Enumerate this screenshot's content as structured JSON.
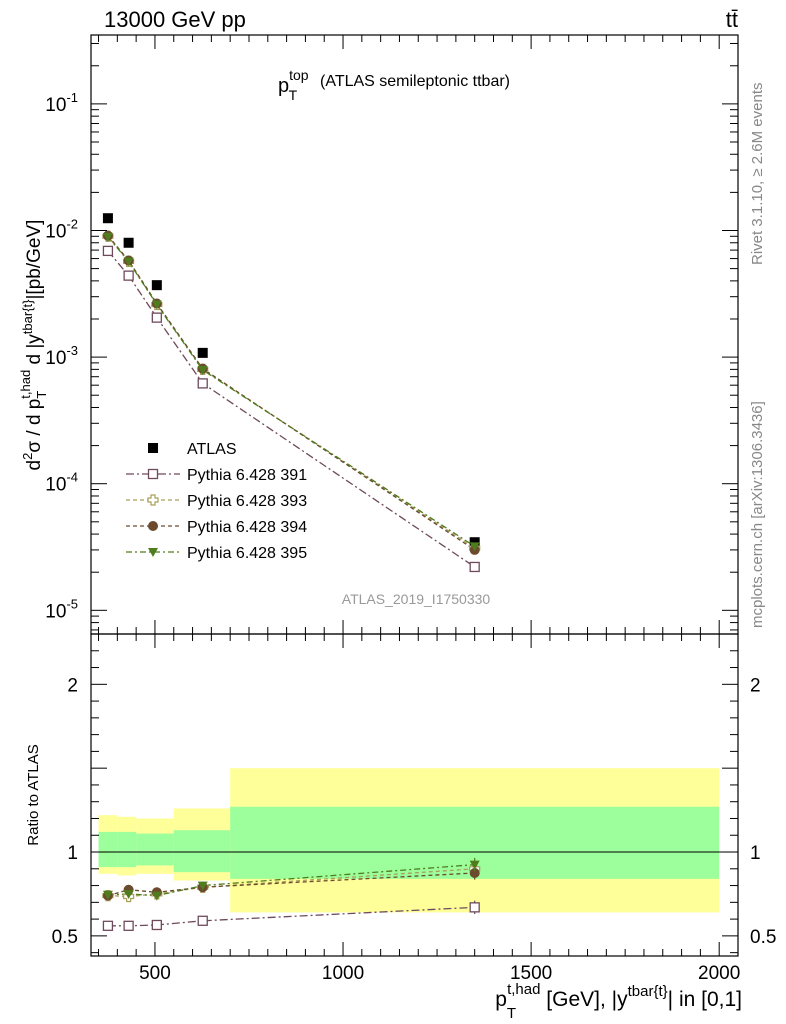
{
  "header": {
    "left": "13000 GeV pp",
    "right": "tt̄"
  },
  "side_labels": {
    "rivet": "Rivet 3.1.10, ≥ 2.6M events",
    "mcplots": "mcplots.cern.ch [arXiv:1306.3436]"
  },
  "analysis_id": "ATLAS_2019_I1750330",
  "colors": {
    "data": "#000000",
    "p391": "#6e4a5c",
    "p393": "#a8a05a",
    "p394": "#6b4a2e",
    "p395": "#4f7d1e",
    "band_inner": "#9cff9c",
    "band_outer": "#ffff99"
  },
  "chart_data": [
    {
      "type": "scatter",
      "panel": "main",
      "title_main": "p",
      "title_sup": "top",
      "title_sub": "T",
      "title_rest": "(ATLAS semileptonic ttbar)",
      "ylabel": "d²σ / d p_T^{t,had} d |y^{tbar{t}}|[pb/GeV]",
      "yscale": "log",
      "ylim": [
        6.5e-06,
        0.35
      ],
      "xlim": [
        330,
        2050
      ],
      "y_ticks": [
        "10^-5",
        "10^-4",
        "10^-3",
        "10^-2",
        "10^-1"
      ],
      "legend_position": "lower-left",
      "x": [
        375,
        430,
        505,
        627,
        1350
      ],
      "series": [
        {
          "name": "ATLAS",
          "marker": "filled-square",
          "values": [
            0.0125,
            0.008,
            0.0037,
            0.00108,
            3.45e-05
          ]
        },
        {
          "name": "Pythia 6.428 391",
          "marker": "open-square",
          "values": [
            0.0069,
            0.0044,
            0.00205,
            0.00062,
            2.2e-05
          ]
        },
        {
          "name": "Pythia 6.428 393",
          "marker": "open-cross",
          "values": [
            0.009,
            0.0057,
            0.0026,
            0.0008,
            3.1e-05
          ]
        },
        {
          "name": "Pythia 6.428 394",
          "marker": "filled-circle",
          "values": [
            0.0091,
            0.0058,
            0.00265,
            0.00081,
            3e-05
          ]
        },
        {
          "name": "Pythia 6.428 395",
          "marker": "filled-triangle-down",
          "values": [
            0.0089,
            0.0057,
            0.0026,
            0.00079,
            3.2e-05
          ]
        }
      ]
    },
    {
      "type": "scatter",
      "panel": "ratio",
      "ylabel": "Ratio to ATLAS",
      "xlabel": "p_T^{t,had} [GeV], |y^{tbar{t}}| in [0,1]",
      "ylim": [
        0.38,
        2.3
      ],
      "xlim": [
        330,
        2050
      ],
      "x_ticks": [
        500,
        1000,
        1500,
        2000
      ],
      "y_ticks": [
        0.5,
        1,
        2
      ],
      "bands": [
        {
          "x0": 350,
          "x1": 400,
          "inner": [
            0.91,
            1.12
          ],
          "outer": [
            0.87,
            1.22
          ]
        },
        {
          "x0": 400,
          "x1": 450,
          "inner": [
            0.91,
            1.12
          ],
          "outer": [
            0.86,
            1.21
          ]
        },
        {
          "x0": 450,
          "x1": 550,
          "inner": [
            0.92,
            1.11
          ],
          "outer": [
            0.87,
            1.2
          ]
        },
        {
          "x0": 550,
          "x1": 700,
          "inner": [
            0.88,
            1.13
          ],
          "outer": [
            0.83,
            1.26
          ]
        },
        {
          "x0": 700,
          "x1": 2000,
          "inner": [
            0.84,
            1.27
          ],
          "outer": [
            0.64,
            1.5
          ]
        }
      ],
      "x": [
        375,
        430,
        505,
        627,
        1350
      ],
      "series": [
        {
          "name": "Pythia 6.428 391",
          "values": [
            0.56,
            0.56,
            0.565,
            0.59,
            0.67
          ],
          "err": [
            0.01,
            0.01,
            0.01,
            0.02,
            0.04
          ]
        },
        {
          "name": "Pythia 6.428 393",
          "values": [
            0.74,
            0.735,
            0.75,
            0.79,
            0.9
          ],
          "err": [
            0.015,
            0.015,
            0.015,
            0.02,
            0.04
          ]
        },
        {
          "name": "Pythia 6.428 394",
          "values": [
            0.74,
            0.775,
            0.76,
            0.79,
            0.875
          ],
          "err": [
            0.015,
            0.015,
            0.015,
            0.02,
            0.04
          ]
        },
        {
          "name": "Pythia 6.428 395",
          "values": [
            0.745,
            0.75,
            0.74,
            0.8,
            0.925
          ],
          "err": [
            0.015,
            0.015,
            0.015,
            0.02,
            0.04
          ]
        }
      ]
    }
  ]
}
